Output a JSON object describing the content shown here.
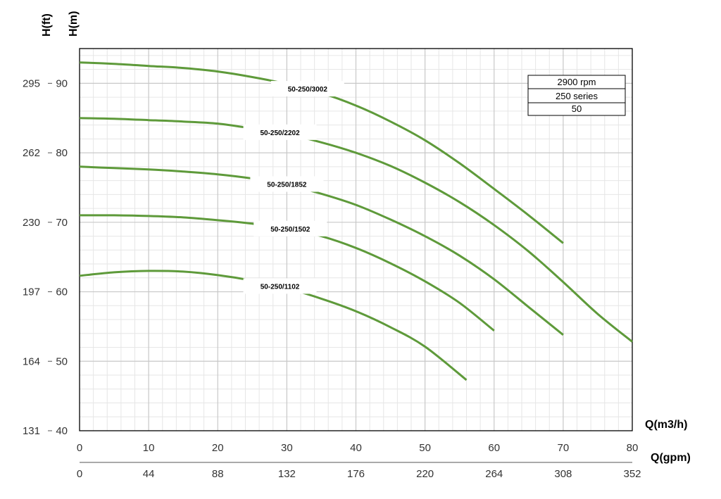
{
  "chart_data": {
    "type": "line",
    "y_axis_left_label": "H(ft)",
    "y_axis_right_label": "H(m)",
    "x_axis_label": "Q(m3/h)",
    "x_axis_secondary_label": "Q(gpm)",
    "xlim": [
      0,
      80
    ],
    "ylim": [
      40,
      95
    ],
    "grid": true,
    "x_ticks": [
      0,
      10,
      20,
      30,
      40,
      50,
      60,
      70,
      80
    ],
    "x_ticks_gpm": [
      "0",
      "44",
      "88",
      "132",
      "176",
      "220",
      "264",
      "308",
      "352"
    ],
    "y_ticks_m": [
      40,
      50,
      60,
      70,
      80,
      90
    ],
    "y_ticks_ft": [
      "131",
      "164",
      "197",
      "230",
      "262",
      "295"
    ],
    "legend_box": [
      "2900 rpm",
      "250 series",
      "50"
    ],
    "line_color": "#5e9a3a",
    "series": [
      {
        "name": "50-250/3002",
        "x": [
          0,
          5,
          10,
          15,
          20,
          25,
          30,
          35,
          40,
          45,
          50,
          55,
          60,
          65,
          70
        ],
        "y": [
          93,
          92.8,
          92.5,
          92.2,
          91.7,
          90.9,
          89.9,
          88.6,
          86.8,
          84.5,
          81.8,
          78.5,
          74.8,
          71,
          67
        ]
      },
      {
        "name": "50-250/2202",
        "x": [
          0,
          5,
          10,
          15,
          20,
          25,
          30,
          35,
          40,
          45,
          50,
          55,
          60,
          65,
          70,
          75,
          80
        ],
        "y": [
          85,
          84.9,
          84.7,
          84.5,
          84.2,
          83.5,
          82.7,
          81.5,
          80,
          78.1,
          75.7,
          72.9,
          69.6,
          65.8,
          61.4,
          56.8,
          52.8
        ]
      },
      {
        "name": "50-250/1852",
        "x": [
          0,
          5,
          10,
          15,
          20,
          25,
          30,
          35,
          40,
          45,
          50,
          55,
          60,
          65,
          70
        ],
        "y": [
          78,
          77.8,
          77.6,
          77.3,
          76.9,
          76.3,
          75.4,
          74.1,
          72.5,
          70.4,
          68,
          65.2,
          61.8,
          57.8,
          53.8
        ]
      },
      {
        "name": "50-250/1502",
        "x": [
          0,
          5,
          10,
          15,
          20,
          25,
          30,
          35,
          40,
          45,
          50,
          55,
          60
        ],
        "y": [
          71,
          71,
          70.9,
          70.7,
          70.3,
          69.8,
          69.1,
          68,
          66.3,
          64.1,
          61.5,
          58.4,
          54.4
        ]
      },
      {
        "name": "50-250/1102",
        "x": [
          0,
          5,
          10,
          15,
          20,
          25,
          30,
          35,
          40,
          45,
          50,
          56
        ],
        "y": [
          62.3,
          62.8,
          63,
          62.9,
          62.4,
          61.6,
          60.5,
          59,
          57.2,
          54.9,
          52.1,
          47.3
        ]
      }
    ]
  }
}
